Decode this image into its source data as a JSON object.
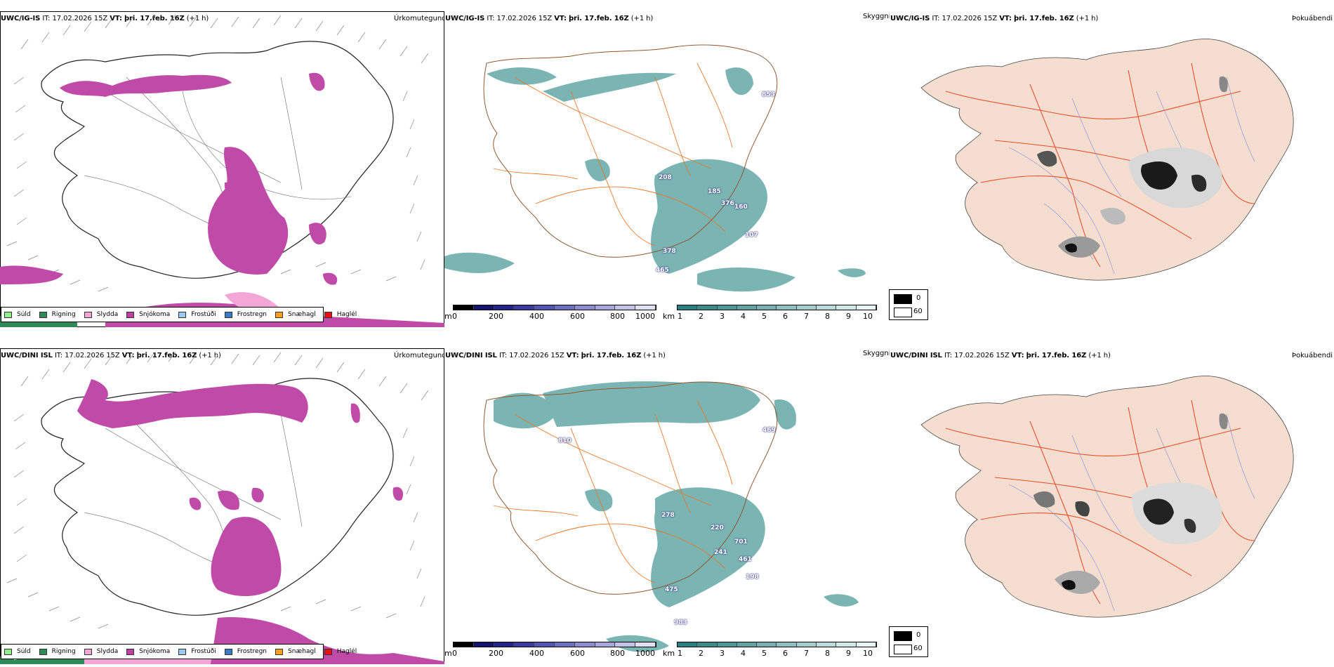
{
  "rows": [
    {
      "model": "UWC/IG-IS",
      "it_label": "IT:",
      "it_value": "17.02.2026 15Z",
      "vt_label": "VT:",
      "vt_value": "þri. 17.feb. 16Z",
      "lead": "(+1 h)",
      "annotations": [
        "853",
        "208",
        "185",
        "376",
        "160",
        "107",
        "378",
        "465"
      ]
    },
    {
      "model": "UWC/DINI ISL",
      "it_label": "IT:",
      "it_value": "17.02.2026 15Z",
      "vt_label": "VT:",
      "vt_value": "þri. 17.feb. 16Z",
      "lead": "(+1 h)",
      "annotations": [
        "810",
        "469",
        "278",
        "220",
        "701",
        "241",
        "461",
        "198",
        "475",
        "983"
      ]
    }
  ],
  "panel_titles": {
    "precip": "Úrkomutegund",
    "cloud": "Skyggni",
    "fog": "Þokuábendi"
  },
  "precip_legend": [
    {
      "label": "Súld",
      "color": "#90ee90"
    },
    {
      "label": "Rigning",
      "color": "#2e8b57"
    },
    {
      "label": "Slydda",
      "color": "#f4a6d7"
    },
    {
      "label": "Snjókoma",
      "color": "#c040a0"
    },
    {
      "label": "Frostúði",
      "color": "#9ec9f0"
    },
    {
      "label": "Frostregn",
      "color": "#3d7ac9"
    },
    {
      "label": "Snæhagl",
      "color": "#ff9f1a"
    },
    {
      "label": "Haglél",
      "color": "#e81010"
    }
  ],
  "cloudbase_bar": {
    "unit": "m",
    "ticks": [
      "0",
      "200",
      "400",
      "600",
      "800",
      "1000"
    ],
    "colors": [
      "#000000",
      "#14146e",
      "#23238a",
      "#3a3aa0",
      "#5555b4",
      "#7070c0",
      "#8c8cd0",
      "#a8a8dc",
      "#c4c4e8",
      "#e0e0f4"
    ]
  },
  "visibility_bar": {
    "unit": "km",
    "ticks": [
      "1",
      "2",
      "3",
      "4",
      "5",
      "6",
      "7",
      "8",
      "9",
      "10"
    ],
    "colors": [
      "#2a8080",
      "#3a8c8c",
      "#4d9898",
      "#62a4a4",
      "#78b2b2",
      "#8ec0c0",
      "#a4cece",
      "#badcdc",
      "#d0e8e8",
      "#e8f4f4"
    ]
  },
  "fog_legend": [
    {
      "label": "0",
      "color": "#000000"
    },
    {
      "label": "60",
      "color": "#ffffff"
    }
  ],
  "colors": {
    "snow": "#c04aa8",
    "rain": "#2e8b57",
    "sleet": "#f4a6d7",
    "teal": "#4e9c9a",
    "roads": "#e8782a",
    "land_fog": "#f5ddd0",
    "red_roads": "#e8502a",
    "rivers": "#7a8cf0"
  }
}
